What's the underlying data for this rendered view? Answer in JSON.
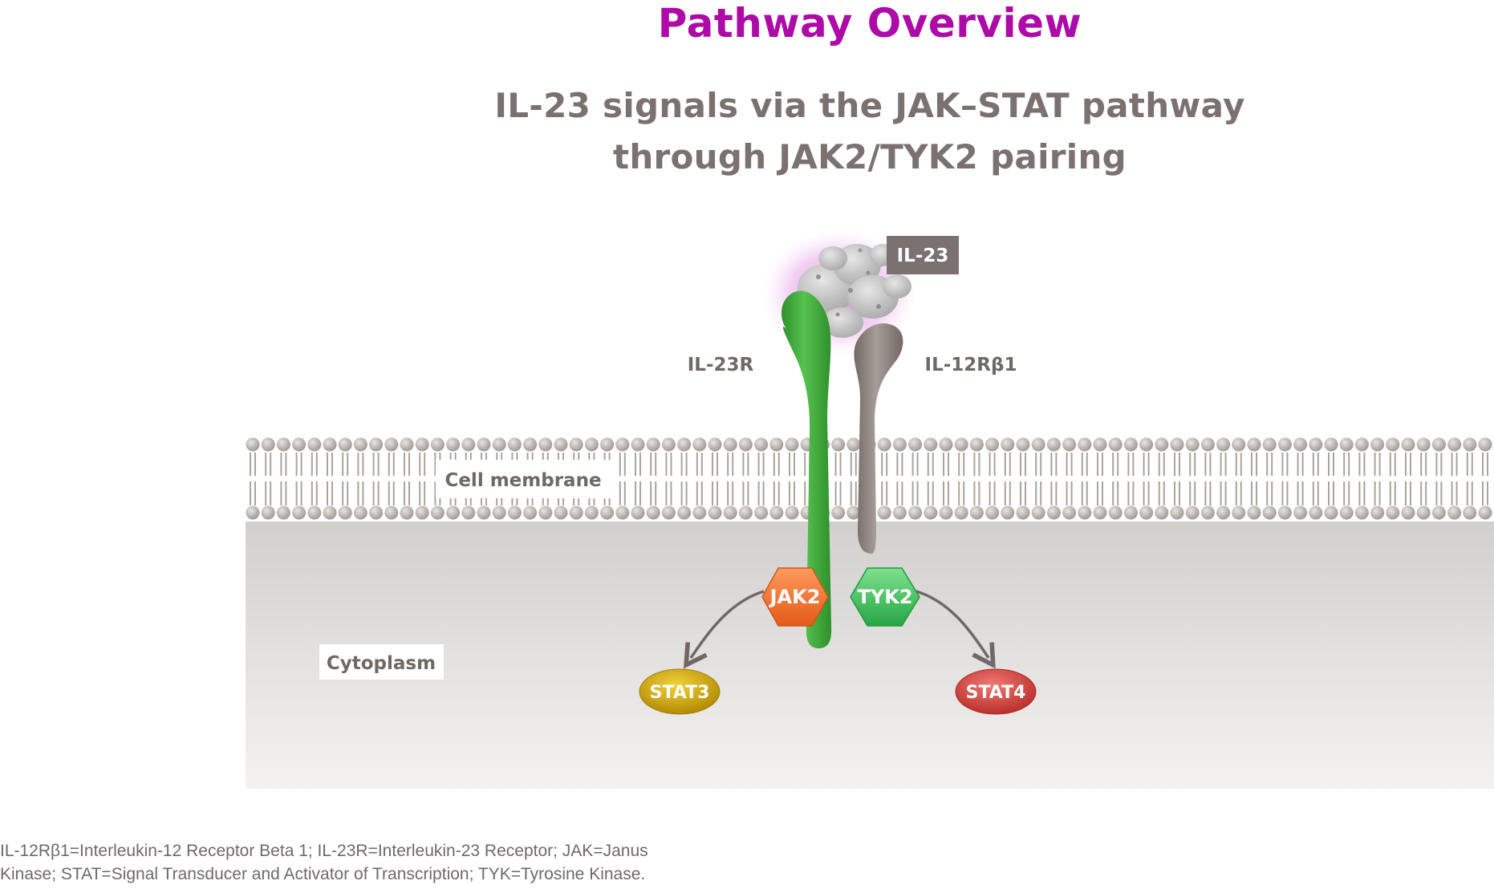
{
  "header": {
    "title": "Pathway Overview",
    "subtitle_line1": "IL-23 signals via the JAK–STAT pathway",
    "subtitle_line2": "through JAK2/TYK2 pairing"
  },
  "diagram": {
    "ligand_label": "IL-23",
    "receptor_left_label": "IL-23R",
    "receptor_right_label": "IL-12Rβ1",
    "membrane_label": "Cell membrane",
    "cytoplasm_label": "Cytoplasm",
    "kinase_left_label": "JAK2",
    "kinase_right_label": "TYK2",
    "stat_left_label": "STAT3",
    "stat_right_label": "STAT4",
    "colors": {
      "title": "#ad0aa8",
      "text_gray": "#7a7170",
      "il23r": "#3ea83a",
      "il12rb1": "#8b807c",
      "jak2": "#f26f2d",
      "tyk2": "#3fbe5a",
      "stat3": "#c9a10a",
      "stat4": "#d0443f",
      "cytoplasm": "#d9d7d5",
      "membrane_bead": "#b8b2ad"
    }
  },
  "footnote": {
    "line1": "IL-12Rβ1=Interleukin-12 Receptor Beta 1; IL-23R=Interleukin-23 Receptor; JAK=Janus",
    "line2": "Kinase; STAT=Signal Transducer and Activator of Transcription; TYK=Tyrosine Kinase."
  }
}
